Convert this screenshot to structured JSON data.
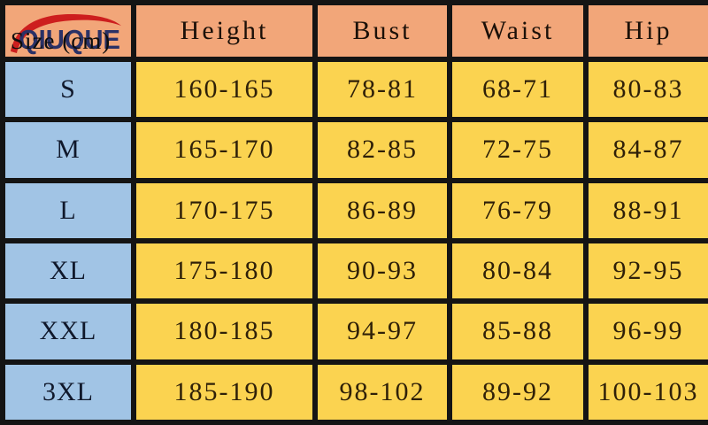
{
  "logo": {
    "text": "QIUQUE"
  },
  "table": {
    "corner_label": "Size (cm)",
    "headers": [
      "Height",
      "Bust",
      "Waist",
      "Hip"
    ],
    "rows": [
      {
        "size": "S",
        "values": [
          "160-165",
          "78-81",
          "68-71",
          "80-83"
        ]
      },
      {
        "size": "M",
        "values": [
          "165-170",
          "82-85",
          "72-75",
          "84-87"
        ]
      },
      {
        "size": "L",
        "values": [
          "170-175",
          "86-89",
          "76-79",
          "88-91"
        ]
      },
      {
        "size": "XL",
        "values": [
          "175-180",
          "90-93",
          "80-84",
          "92-95"
        ]
      },
      {
        "size": "XXL",
        "values": [
          "180-185",
          "94-97",
          "85-88",
          "96-99"
        ]
      },
      {
        "size": "3XL",
        "values": [
          "185-190",
          "98-102",
          "89-92",
          "100-103"
        ]
      }
    ]
  },
  "colors": {
    "header_bg": "#f2a679",
    "size_col_bg": "#a1c4e5",
    "value_bg": "#fbd350",
    "border": "#141414",
    "header_text": "#1b1008",
    "value_text": "#2f2008",
    "size_text": "#10182b",
    "logo_text": "#2a3166",
    "logo_swoosh": "#cd1e1e"
  },
  "chart_data": {
    "type": "table",
    "title": "Size (cm)",
    "columns": [
      "Size (cm)",
      "Height",
      "Bust",
      "Waist",
      "Hip"
    ],
    "rows": [
      [
        "S",
        "160-165",
        "78-81",
        "68-71",
        "80-83"
      ],
      [
        "M",
        "165-170",
        "82-85",
        "72-75",
        "84-87"
      ],
      [
        "L",
        "170-175",
        "86-89",
        "76-79",
        "88-91"
      ],
      [
        "XL",
        "175-180",
        "90-93",
        "80-84",
        "92-95"
      ],
      [
        "XXL",
        "180-185",
        "94-97",
        "85-88",
        "96-99"
      ],
      [
        "3XL",
        "185-190",
        "98-102",
        "89-92",
        "100-103"
      ]
    ]
  }
}
